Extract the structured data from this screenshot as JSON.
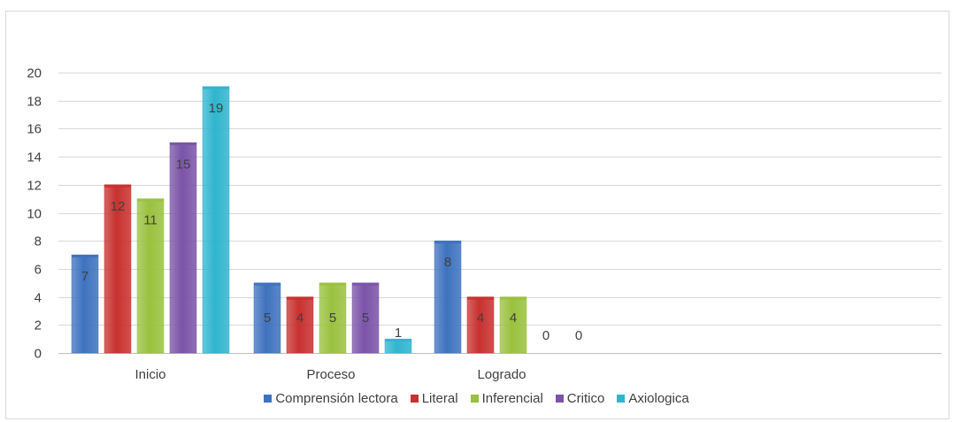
{
  "chart_data": {
    "type": "bar",
    "categories": [
      "Inicio",
      "Proceso",
      "Logrado"
    ],
    "series": [
      {
        "name": "Comprensión lectora",
        "values": [
          7,
          5,
          8
        ],
        "color": "#3e72bf"
      },
      {
        "name": "Literal",
        "values": [
          12,
          4,
          4
        ],
        "color": "#c8312f"
      },
      {
        "name": "Inferencial",
        "values": [
          11,
          5,
          4
        ],
        "color": "#9ac13e"
      },
      {
        "name": "Critico",
        "values": [
          15,
          5,
          0
        ],
        "color": "#7b53a8"
      },
      {
        "name": "Axiologica",
        "values": [
          19,
          1,
          0
        ],
        "color": "#2fb5cf"
      }
    ],
    "yticks": [
      0,
      2,
      4,
      6,
      8,
      10,
      12,
      14,
      16,
      18,
      20
    ],
    "ylim": [
      0,
      20
    ],
    "grid": true,
    "legend_position": "bottom",
    "title": "",
    "xlabel": "",
    "ylabel": ""
  }
}
